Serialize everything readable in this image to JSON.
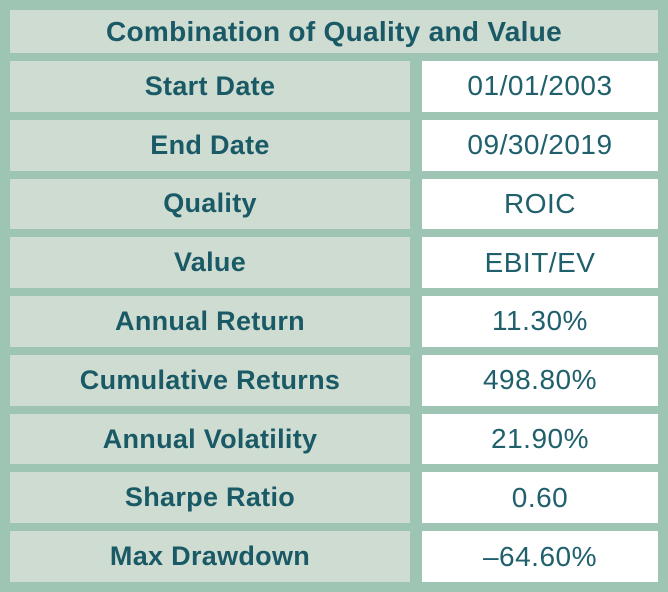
{
  "table": {
    "title": "Combination of Quality and Value",
    "rows": [
      {
        "label": "Start Date",
        "value": "01/01/2003"
      },
      {
        "label": "End Date",
        "value": "09/30/2019"
      },
      {
        "label": "Quality",
        "value": "ROIC"
      },
      {
        "label": "Value",
        "value": "EBIT/EV"
      },
      {
        "label": "Annual Return",
        "value": "11.30%"
      },
      {
        "label": "Cumulative Returns",
        "value": "498.80%"
      },
      {
        "label": "Annual Volatility",
        "value": "21.90%"
      },
      {
        "label": "Sharpe Ratio",
        "value": "0.60"
      },
      {
        "label": "Max Drawdown",
        "value": "–64.60%"
      }
    ]
  },
  "colors": {
    "background_grid": "#9ec4b4",
    "label_cell_bg": "#cfdcd1",
    "value_cell_bg": "#ffffff",
    "text": "#1a5a66"
  }
}
